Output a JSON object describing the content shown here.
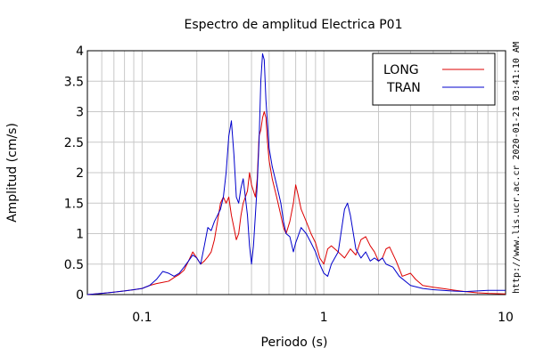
{
  "chart_data": {
    "type": "line",
    "title": "Espectro de amplitud Electrica P01",
    "xlabel": "Periodo (s)",
    "ylabel": "Amplitud (cm/s)",
    "xscale": "log",
    "xlim": [
      0.05,
      10
    ],
    "ylim": [
      0,
      4
    ],
    "xticks": [
      {
        "value": 0.1,
        "label": "0.1"
      },
      {
        "value": 1,
        "label": "1"
      },
      {
        "value": 10,
        "label": "10"
      }
    ],
    "yticks": [
      {
        "value": 0,
        "label": "0"
      },
      {
        "value": 0.5,
        "label": "0.5"
      },
      {
        "value": 1,
        "label": "1"
      },
      {
        "value": 1.5,
        "label": "1.5"
      },
      {
        "value": 2,
        "label": "2"
      },
      {
        "value": 2.5,
        "label": "2.5"
      },
      {
        "value": 3,
        "label": "3"
      },
      {
        "value": 3.5,
        "label": "3.5"
      },
      {
        "value": 4,
        "label": "4"
      }
    ],
    "grid": true,
    "legend_position": "top-right",
    "series": [
      {
        "name": "LONG",
        "color": "#dd0000",
        "points": [
          [
            0.05,
            0.0
          ],
          [
            0.06,
            0.02
          ],
          [
            0.07,
            0.04
          ],
          [
            0.08,
            0.06
          ],
          [
            0.09,
            0.08
          ],
          [
            0.1,
            0.1
          ],
          [
            0.11,
            0.15
          ],
          [
            0.12,
            0.18
          ],
          [
            0.13,
            0.2
          ],
          [
            0.14,
            0.22
          ],
          [
            0.15,
            0.28
          ],
          [
            0.16,
            0.33
          ],
          [
            0.17,
            0.4
          ],
          [
            0.18,
            0.55
          ],
          [
            0.19,
            0.7
          ],
          [
            0.2,
            0.6
          ],
          [
            0.21,
            0.5
          ],
          [
            0.22,
            0.55
          ],
          [
            0.23,
            0.62
          ],
          [
            0.24,
            0.7
          ],
          [
            0.25,
            0.9
          ],
          [
            0.26,
            1.2
          ],
          [
            0.27,
            1.5
          ],
          [
            0.28,
            1.6
          ],
          [
            0.29,
            1.5
          ],
          [
            0.3,
            1.6
          ],
          [
            0.31,
            1.3
          ],
          [
            0.32,
            1.1
          ],
          [
            0.33,
            0.9
          ],
          [
            0.34,
            1.0
          ],
          [
            0.35,
            1.3
          ],
          [
            0.36,
            1.5
          ],
          [
            0.37,
            1.6
          ],
          [
            0.38,
            1.7
          ],
          [
            0.39,
            2.0
          ],
          [
            0.4,
            1.8
          ],
          [
            0.41,
            1.7
          ],
          [
            0.42,
            1.6
          ],
          [
            0.43,
            1.9
          ],
          [
            0.44,
            2.6
          ],
          [
            0.45,
            2.7
          ],
          [
            0.46,
            2.9
          ],
          [
            0.47,
            3.0
          ],
          [
            0.48,
            2.9
          ],
          [
            0.49,
            2.5
          ],
          [
            0.5,
            2.2
          ],
          [
            0.52,
            1.9
          ],
          [
            0.55,
            1.6
          ],
          [
            0.58,
            1.3
          ],
          [
            0.6,
            1.1
          ],
          [
            0.62,
            1.0
          ],
          [
            0.65,
            1.2
          ],
          [
            0.68,
            1.5
          ],
          [
            0.7,
            1.8
          ],
          [
            0.72,
            1.65
          ],
          [
            0.75,
            1.4
          ],
          [
            0.8,
            1.2
          ],
          [
            0.85,
            1.0
          ],
          [
            0.9,
            0.85
          ],
          [
            0.95,
            0.6
          ],
          [
            1.0,
            0.5
          ],
          [
            1.05,
            0.75
          ],
          [
            1.1,
            0.8
          ],
          [
            1.2,
            0.7
          ],
          [
            1.3,
            0.6
          ],
          [
            1.4,
            0.75
          ],
          [
            1.5,
            0.65
          ],
          [
            1.6,
            0.9
          ],
          [
            1.7,
            0.95
          ],
          [
            1.8,
            0.8
          ],
          [
            1.9,
            0.7
          ],
          [
            2.0,
            0.55
          ],
          [
            2.1,
            0.6
          ],
          [
            2.2,
            0.75
          ],
          [
            2.3,
            0.78
          ],
          [
            2.5,
            0.55
          ],
          [
            2.7,
            0.3
          ],
          [
            3.0,
            0.35
          ],
          [
            3.2,
            0.25
          ],
          [
            3.5,
            0.15
          ],
          [
            4.0,
            0.12
          ],
          [
            4.5,
            0.1
          ],
          [
            5.0,
            0.08
          ],
          [
            6.0,
            0.05
          ],
          [
            7.0,
            0.03
          ],
          [
            8.0,
            0.02
          ],
          [
            10.0,
            0.01
          ]
        ]
      },
      {
        "name": "TRAN",
        "color": "#0000cc",
        "points": [
          [
            0.05,
            0.0
          ],
          [
            0.06,
            0.02
          ],
          [
            0.07,
            0.04
          ],
          [
            0.08,
            0.06
          ],
          [
            0.09,
            0.08
          ],
          [
            0.1,
            0.1
          ],
          [
            0.11,
            0.15
          ],
          [
            0.12,
            0.25
          ],
          [
            0.13,
            0.38
          ],
          [
            0.14,
            0.35
          ],
          [
            0.15,
            0.3
          ],
          [
            0.16,
            0.35
          ],
          [
            0.17,
            0.45
          ],
          [
            0.18,
            0.55
          ],
          [
            0.19,
            0.65
          ],
          [
            0.2,
            0.6
          ],
          [
            0.21,
            0.5
          ],
          [
            0.22,
            0.8
          ],
          [
            0.23,
            1.1
          ],
          [
            0.24,
            1.05
          ],
          [
            0.25,
            1.2
          ],
          [
            0.26,
            1.3
          ],
          [
            0.27,
            1.4
          ],
          [
            0.28,
            1.6
          ],
          [
            0.29,
            2.0
          ],
          [
            0.3,
            2.6
          ],
          [
            0.31,
            2.85
          ],
          [
            0.32,
            2.3
          ],
          [
            0.33,
            1.6
          ],
          [
            0.34,
            1.5
          ],
          [
            0.35,
            1.75
          ],
          [
            0.36,
            1.9
          ],
          [
            0.37,
            1.6
          ],
          [
            0.38,
            1.3
          ],
          [
            0.39,
            0.8
          ],
          [
            0.4,
            0.5
          ],
          [
            0.41,
            0.8
          ],
          [
            0.42,
            1.3
          ],
          [
            0.43,
            1.8
          ],
          [
            0.44,
            2.5
          ],
          [
            0.45,
            3.5
          ],
          [
            0.46,
            3.95
          ],
          [
            0.47,
            3.85
          ],
          [
            0.48,
            3.2
          ],
          [
            0.49,
            2.8
          ],
          [
            0.5,
            2.4
          ],
          [
            0.52,
            2.1
          ],
          [
            0.55,
            1.8
          ],
          [
            0.58,
            1.5
          ],
          [
            0.6,
            1.2
          ],
          [
            0.62,
            1.0
          ],
          [
            0.65,
            0.95
          ],
          [
            0.68,
            0.7
          ],
          [
            0.7,
            0.85
          ],
          [
            0.72,
            0.95
          ],
          [
            0.75,
            1.1
          ],
          [
            0.8,
            1.0
          ],
          [
            0.85,
            0.85
          ],
          [
            0.9,
            0.7
          ],
          [
            0.95,
            0.5
          ],
          [
            1.0,
            0.35
          ],
          [
            1.05,
            0.3
          ],
          [
            1.1,
            0.5
          ],
          [
            1.2,
            0.7
          ],
          [
            1.3,
            1.4
          ],
          [
            1.35,
            1.5
          ],
          [
            1.4,
            1.3
          ],
          [
            1.5,
            0.75
          ],
          [
            1.6,
            0.6
          ],
          [
            1.7,
            0.7
          ],
          [
            1.8,
            0.55
          ],
          [
            1.9,
            0.6
          ],
          [
            2.0,
            0.55
          ],
          [
            2.1,
            0.6
          ],
          [
            2.2,
            0.5
          ],
          [
            2.4,
            0.45
          ],
          [
            2.6,
            0.3
          ],
          [
            3.0,
            0.15
          ],
          [
            3.5,
            0.1
          ],
          [
            4.0,
            0.08
          ],
          [
            5.0,
            0.06
          ],
          [
            6.0,
            0.05
          ],
          [
            7.0,
            0.06
          ],
          [
            8.0,
            0.07
          ],
          [
            10.0,
            0.07
          ]
        ]
      }
    ],
    "side_text": "http://www.lis.ucr.ac.cr  2020-01-21 03:41:10 AM"
  }
}
